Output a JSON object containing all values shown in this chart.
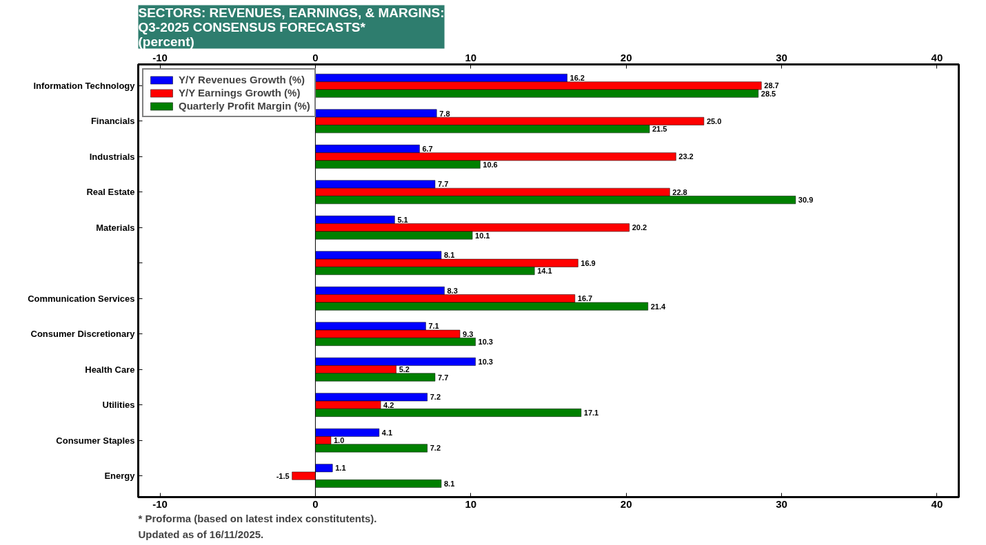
{
  "chart_data": {
    "type": "bar",
    "orientation": "horizontal",
    "title": "SECTORS: REVENUES, EARNINGS, & MARGINS:\nQ3-2025 CONSENSUS FORECASTS*\n(percent)",
    "categories": [
      "Information Technology",
      "Financials",
      "Industrials",
      "Real Estate",
      "Materials",
      null,
      "Communication Services",
      "Consumer Discretionary",
      "Health Care",
      "Utilities",
      "Consumer Staples",
      "Energy"
    ],
    "series": [
      {
        "name": "Y/Y Revenues Growth (%)",
        "color": "#0000ff",
        "values": [
          16.2,
          7.8,
          6.7,
          7.7,
          5.1,
          8.1,
          8.3,
          7.1,
          10.3,
          7.2,
          4.1,
          1.1
        ]
      },
      {
        "name": "Y/Y Earnings Growth (%)",
        "color": "#ff0000",
        "values": [
          28.7,
          25.0,
          23.2,
          22.8,
          20.2,
          16.9,
          16.7,
          9.3,
          5.2,
          4.2,
          1.0,
          -1.5
        ]
      },
      {
        "name": "Quarterly Profit Margin (%)",
        "color": "#008000",
        "values": [
          28.5,
          21.5,
          10.6,
          30.9,
          10.1,
          14.1,
          21.4,
          10.3,
          7.7,
          17.1,
          7.2,
          8.1
        ]
      }
    ],
    "value_labels": [
      [
        "16.2",
        "7.8",
        "6.7",
        "7.7",
        "5.1",
        "8.1",
        "8.3",
        "7.1",
        "10.3",
        "7.2",
        "4.1",
        "1.1"
      ],
      [
        "28.7",
        "25.0",
        "23.2",
        "22.8",
        "20.2",
        "16.9",
        "16.7",
        "9.3",
        "5.2",
        "4.2",
        "1.0",
        "-1.5"
      ],
      [
        "28.5",
        "21.5",
        "10.6",
        "30.9",
        "10.1",
        "14.1",
        "21.4",
        "10.3",
        "7.7",
        "17.1",
        "7.2",
        "8.1"
      ]
    ],
    "xlim": [
      -11.4,
      41.4
    ],
    "xticks": [
      -10,
      0,
      10,
      20,
      30,
      40
    ],
    "x2lim": [
      -11.4,
      41.4
    ],
    "x2ticks": [
      -10,
      0,
      10,
      20,
      30,
      40
    ],
    "grid": false,
    "legend": "top left",
    "ref_lines": [
      {
        "axis": "x",
        "value": 0
      }
    ],
    "annotations": [
      "* Proforma (based on latest index constitutents).",
      "Updated as of 16/11/2025."
    ]
  }
}
